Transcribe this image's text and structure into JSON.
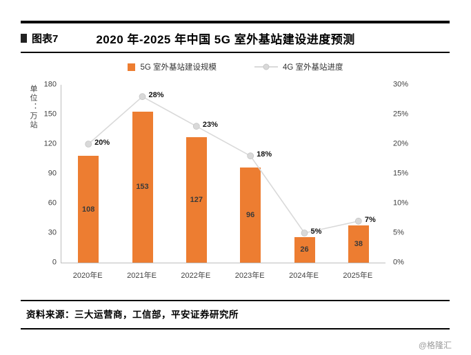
{
  "header": {
    "label": "图表7",
    "title": "2020 年-2025 年中国 5G 室外基站建设进度预测"
  },
  "chart_data": {
    "type": "bar",
    "subtype": "bar+line combo",
    "title": "2020 年-2025 年中国 5G 室外基站建设进度预测",
    "categories": [
      "2020年E",
      "2021年E",
      "2022年E",
      "2023年E",
      "2024年E",
      "2025年E"
    ],
    "series": [
      {
        "name": "5G 室外基站建设规模",
        "type": "bar",
        "axis": "left",
        "values": [
          108,
          153,
          127,
          96,
          26,
          38
        ],
        "color": "#ED7D31"
      },
      {
        "name": "4G 室外基站进度",
        "type": "line",
        "axis": "right",
        "values": [
          20,
          28,
          23,
          18,
          5,
          7
        ],
        "labels": [
          "20%",
          "28%",
          "23%",
          "18%",
          "5%",
          "7%"
        ],
        "color": "#D9D9D9"
      }
    ],
    "left_axis": {
      "title": "单位：万站",
      "ticks": [
        0,
        30,
        60,
        90,
        120,
        150,
        180
      ],
      "min": 0,
      "max": 180
    },
    "right_axis": {
      "ticks": [
        "0%",
        "5%",
        "10%",
        "15%",
        "20%",
        "25%",
        "30%"
      ],
      "min": 0,
      "max": 30
    },
    "legend_position": "top",
    "grid": false
  },
  "footer": {
    "source": "资料来源：三大运营商，工信部，平安证券研究所",
    "watermark": "@格隆汇"
  }
}
